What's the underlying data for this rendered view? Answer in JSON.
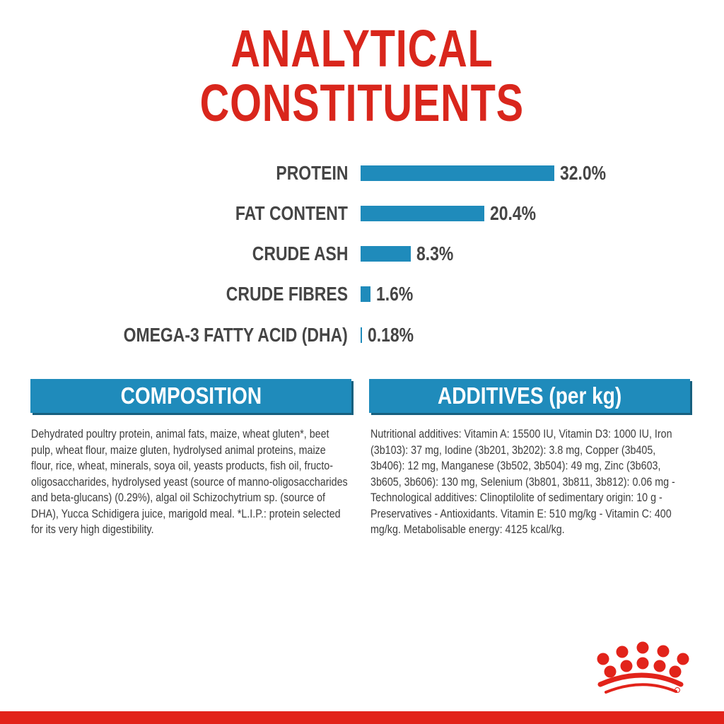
{
  "title": {
    "line1": "ANALYTICAL",
    "line2": "CONSTITUENTS"
  },
  "chart_data": {
    "type": "bar",
    "orientation": "horizontal",
    "categories": [
      "PROTEIN",
      "FAT CONTENT",
      "CRUDE ASH",
      "CRUDE FIBRES",
      "OMEGA-3 FATTY ACID (DHA)"
    ],
    "values": [
      32.0,
      20.4,
      8.3,
      1.6,
      0.18
    ],
    "labels": [
      "32.0%",
      "20.4%",
      "8.3%",
      "1.6%",
      "0.18%"
    ],
    "bar_color": "#1f8bbb"
  },
  "composition": {
    "header": "COMPOSITION",
    "text": "Dehydrated poultry protein, animal fats, maize, wheat gluten*, beet pulp, wheat flour, maize gluten, hydrolysed animal proteins, maize flour, rice, wheat, minerals, soya oil, yeasts products, fish oil, fructo-oligosaccharides, hydrolysed yeast (source of manno-oligosaccharides and beta-glucans) (0.29%), algal oil Schizochytrium sp. (source of DHA), Yucca Schidigera juice, marigold meal. *L.I.P.: protein selected for its very high digestibility."
  },
  "additives": {
    "header": "ADDITIVES (per kg)",
    "text": "Nutritional additives: Vitamin A: 15500 IU, Vitamin D3: 1000 IU, Iron (3b103): 37 mg, Iodine (3b201, 3b202): 3.8 mg, Copper (3b405, 3b406): 12 mg, Manganese (3b502, 3b504): 49 mg, Zinc (3b603, 3b605, 3b606): 130 mg, Selenium (3b801, 3b811, 3b812): 0.06 mg - Technological additives: Clinoptilolite of sedimentary origin: 10 g - Preservatives - Antioxidants. Vitamin E: 510 mg/kg - Vitamin C: 400 mg/kg. Metabolisable energy: 4125 kcal/kg."
  },
  "logo": {
    "name": "crown-logo",
    "mark": "®",
    "color": "#e2231a"
  },
  "colors": {
    "title": "#d9261c",
    "accent": "#1f8bbb",
    "footer": "#e2231a"
  }
}
